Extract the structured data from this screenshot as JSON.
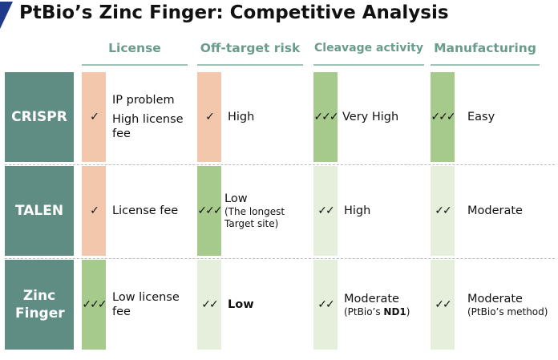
{
  "title": "PtBio’s Zinc Finger: Competitive Analysis",
  "columns": [
    "License",
    "Off-target risk",
    "Cleavage activity",
    "Manufacturing"
  ],
  "rows": [
    {
      "label": "CRISPR",
      "cells": [
        {
          "check": "✓",
          "line1": "IP problem",
          "line2": "High license fee"
        },
        {
          "check": "✓",
          "line1": "High"
        },
        {
          "check": "✓✓✓",
          "line1": "Very High"
        },
        {
          "check": "✓✓✓",
          "line1": "Easy"
        }
      ]
    },
    {
      "label": "TALEN",
      "cells": [
        {
          "check": "✓",
          "line1": "License fee"
        },
        {
          "check": "✓✓✓",
          "line1": "Low",
          "line2": "(The longest Target site)"
        },
        {
          "check": "✓✓",
          "line1": "High"
        },
        {
          "check": "✓✓",
          "line1": "Moderate"
        }
      ]
    },
    {
      "label": "Zinc Finger",
      "cells": [
        {
          "check": "✓✓✓",
          "line1": "Low license fee"
        },
        {
          "check": "✓✓",
          "line1": "Low"
        },
        {
          "check": "✓✓",
          "line1": "Moderate",
          "line2a": "(PtBio’s ",
          "line2b": "ND1",
          "line2c": ")"
        },
        {
          "check": "✓✓",
          "line1": "Moderate",
          "line2": "(PtBio’s method)"
        }
      ]
    }
  ],
  "colors": {
    "row_label": "#5f8c83",
    "header": "#6a9c8c",
    "high": "#a6c98c",
    "low": "#f2c7ac",
    "mid": "#e5efdc",
    "accent": "#1f3a8a"
  }
}
